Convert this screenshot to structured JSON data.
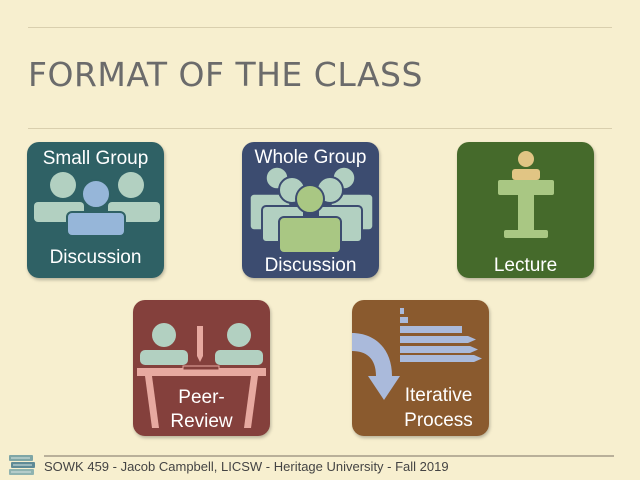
{
  "slide": {
    "title": "FORMAT OF THE CLASS"
  },
  "tiles": {
    "small_group": {
      "top": "Small Group",
      "bottom": "Discussion",
      "color": "#2f6165"
    },
    "whole_group": {
      "top": "Whole Group",
      "bottom": "Discussion",
      "color": "#3c4c70"
    },
    "lecture": {
      "bottom": "Lecture",
      "color": "#456a2b"
    },
    "peer_review": {
      "line1": "Peer-",
      "line2": "Review",
      "color": "#84403c"
    },
    "iterative": {
      "line1": "Iterative",
      "line2": "Process",
      "color": "#8a5a2e"
    }
  },
  "footer": {
    "text": "SOWK 459 - Jacob Campbell, LICSW - Heritage University - Fall 2019"
  },
  "colors": {
    "background": "#f7efcf",
    "figure_light": "#b2d0c1",
    "figure_blue": "#96b6d9",
    "figure_green": "#a9c783",
    "lecture_figure": "#e1c584",
    "arrow": "#aabadb",
    "table_pink": "#e7a9a0"
  },
  "icons": [
    "people-group-icon",
    "crowd-icon",
    "podium-icon",
    "desk-icon",
    "cycle-arrow-icon"
  ]
}
